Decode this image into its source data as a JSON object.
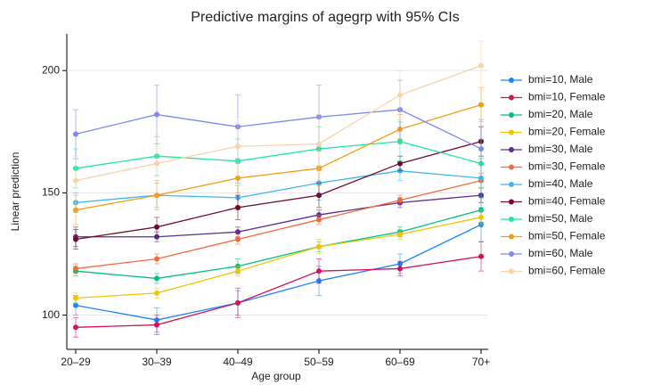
{
  "chart_data": {
    "type": "line",
    "title": "Predictive margins of agegrp with 95% CIs",
    "x_label": "Age group",
    "y_label": "Linear prediction",
    "categories": [
      "20–29",
      "30–39",
      "40–49",
      "50–59",
      "60–69",
      "70+"
    ],
    "ylim": [
      86,
      215
    ],
    "yticks": [
      100,
      150,
      200
    ],
    "grid": true,
    "legend": "right",
    "series": [
      {
        "name": "bmi=10, Male",
        "color": "#1a85ff",
        "values": [
          104,
          98,
          105,
          114,
          121,
          137
        ],
        "errors": [
          4,
          5,
          5,
          6,
          4,
          7
        ]
      },
      {
        "name": "bmi=10, Female",
        "color": "#d41159",
        "values": [
          95,
          96,
          105,
          118,
          119,
          124
        ],
        "errors": [
          4,
          4,
          6,
          5,
          3,
          6
        ]
      },
      {
        "name": "bmi=20, Male",
        "color": "#00bf7f",
        "values": [
          118,
          115,
          120,
          128,
          134,
          143
        ],
        "errors": [
          2,
          2,
          3,
          2,
          2,
          5
        ]
      },
      {
        "name": "bmi=20, Female",
        "color": "#f2c400",
        "values": [
          107,
          109,
          118,
          128,
          133,
          140
        ],
        "errors": [
          2,
          2,
          2,
          3,
          2,
          3
        ]
      },
      {
        "name": "bmi=30, Male",
        "color": "#5a2d8f",
        "values": [
          132,
          132,
          134,
          141,
          146,
          149
        ],
        "errors": [
          4,
          2,
          2,
          2,
          2,
          3
        ]
      },
      {
        "name": "bmi=30, Female",
        "color": "#f5693a",
        "values": [
          119,
          123,
          131,
          139,
          147,
          155
        ],
        "errors": [
          2,
          2,
          2,
          2,
          2,
          3
        ]
      },
      {
        "name": "bmi=40, Male",
        "color": "#3fb5f3",
        "values": [
          146,
          149,
          148,
          154,
          159,
          156
        ],
        "errors": [
          4,
          5,
          5,
          7,
          4,
          8
        ]
      },
      {
        "name": "bmi=40, Female",
        "color": "#720a27",
        "values": [
          131,
          136,
          144,
          149,
          162,
          171
        ],
        "errors": [
          4,
          4,
          5,
          5,
          3,
          6
        ]
      },
      {
        "name": "bmi=50, Male",
        "color": "#1ee8a0",
        "values": [
          160,
          165,
          163,
          168,
          171,
          162
        ],
        "errors": [
          8,
          8,
          9,
          9,
          8,
          10
        ]
      },
      {
        "name": "bmi=50, Female",
        "color": "#f59d15",
        "values": [
          143,
          149,
          156,
          160,
          176,
          186
        ],
        "errors": [
          6,
          6,
          6,
          7,
          6,
          7
        ]
      },
      {
        "name": "bmi=60, Male",
        "color": "#7b89f0",
        "values": [
          174,
          182,
          177,
          181,
          184,
          168
        ],
        "errors": [
          10,
          12,
          13,
          13,
          12,
          12
        ]
      },
      {
        "name": "bmi=60, Female",
        "color": "#fad2ab",
        "values": [
          155,
          162,
          169,
          170,
          190,
          202
        ],
        "errors": [
          10,
          12,
          12,
          12,
          10,
          10
        ]
      }
    ]
  }
}
